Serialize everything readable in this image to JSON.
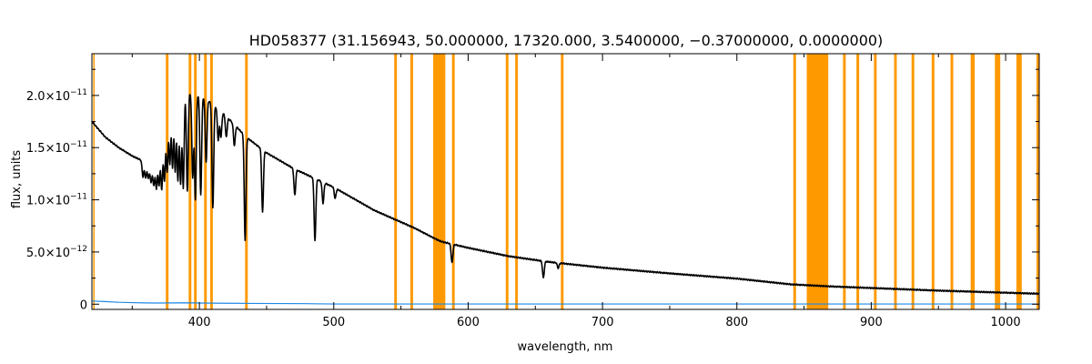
{
  "chart_data": {
    "type": "line",
    "title": "HD058377   (31.156943, 50.000000, 17320.000, 3.5400000, −0.37000000, 0.0000000)",
    "xlabel": "wavelength, nm",
    "ylabel": "flux, units",
    "xlim": [
      320,
      1025
    ],
    "ylim": [
      -5e-13,
      2.4e-11
    ],
    "x_ticks": [
      {
        "value": 400,
        "label": "400"
      },
      {
        "value": 500,
        "label": "500"
      },
      {
        "value": 600,
        "label": "600"
      },
      {
        "value": 700,
        "label": "700"
      },
      {
        "value": 800,
        "label": "800"
      },
      {
        "value": 900,
        "label": "900"
      },
      {
        "value": 1000,
        "label": "1000"
      }
    ],
    "y_ticks": [
      {
        "value": 0,
        "mantissa": "0",
        "exp": ""
      },
      {
        "value": 5e-12,
        "mantissa": "5.0×10",
        "exp": "−12"
      },
      {
        "value": 1e-11,
        "mantissa": "1.0×10",
        "exp": "−11"
      },
      {
        "value": 1.5e-11,
        "mantissa": "1.5×10",
        "exp": "−11"
      },
      {
        "value": 2e-11,
        "mantissa": "2.0×10",
        "exp": "−11"
      }
    ],
    "masked_bands": [
      [
        321,
        322
      ],
      [
        375,
        377
      ],
      [
        392,
        394
      ],
      [
        396,
        398
      ],
      [
        403.5,
        405.5
      ],
      [
        408,
        410
      ],
      [
        434,
        436
      ],
      [
        545,
        547
      ],
      [
        557,
        559
      ],
      [
        574,
        583
      ],
      [
        588,
        590
      ],
      [
        628,
        630
      ],
      [
        635,
        637
      ],
      [
        669,
        671
      ],
      [
        842,
        844
      ],
      [
        852,
        868
      ],
      [
        879,
        881
      ],
      [
        889,
        891
      ],
      [
        902,
        904
      ],
      [
        917,
        919
      ],
      [
        930,
        932
      ],
      [
        945,
        947
      ],
      [
        959,
        961
      ],
      [
        974,
        977
      ],
      [
        992,
        996
      ],
      [
        1008,
        1012
      ],
      [
        1023,
        1025
      ]
    ],
    "series": [
      {
        "color": "#000000",
        "continuum": [
          [
            320,
            1.75e-11
          ],
          [
            330,
            1.6e-11
          ],
          [
            340,
            1.5e-11
          ],
          [
            350,
            1.42e-11
          ],
          [
            360,
            1.36e-11
          ],
          [
            368,
            1.33e-11
          ],
          [
            372,
            1.55e-11
          ],
          [
            378,
            1.95e-11
          ],
          [
            390,
            2.03e-11
          ],
          [
            400,
            2e-11
          ],
          [
            410,
            1.92e-11
          ],
          [
            420,
            1.8e-11
          ],
          [
            435,
            1.6e-11
          ],
          [
            450,
            1.45e-11
          ],
          [
            470,
            1.3e-11
          ],
          [
            500,
            1.12e-11
          ],
          [
            530,
            9e-12
          ],
          [
            560,
            7.3e-12
          ],
          [
            575,
            6.3e-12
          ],
          [
            580,
            6e-12
          ],
          [
            600,
            5.4e-12
          ],
          [
            630,
            4.6e-12
          ],
          [
            660,
            4.05e-12
          ],
          [
            700,
            3.5e-12
          ],
          [
            750,
            2.95e-12
          ],
          [
            800,
            2.45e-12
          ],
          [
            840,
            1.9e-12
          ],
          [
            870,
            1.7e-12
          ],
          [
            900,
            1.55e-12
          ],
          [
            950,
            1.3e-12
          ],
          [
            1000,
            1.1e-12
          ],
          [
            1025,
            1e-12
          ]
        ],
        "absorption_lines": [
          [
            358,
            1.5e-12
          ],
          [
            360,
            1.5e-12
          ],
          [
            362,
            1.5e-12
          ],
          [
            364,
            1.8e-12
          ],
          [
            366,
            2e-12
          ],
          [
            368,
            2.2e-12
          ],
          [
            370,
            3e-12
          ],
          [
            372,
            4.5e-12
          ],
          [
            374,
            5e-12
          ],
          [
            376,
            5.5e-12
          ],
          [
            378,
            6e-12
          ],
          [
            380,
            6.5e-12
          ],
          [
            382,
            7e-12
          ],
          [
            384,
            8e-12
          ],
          [
            386,
            8.5e-12
          ],
          [
            388,
            9e-12
          ],
          [
            391,
            9.5e-12
          ],
          [
            395,
            8e-12
          ],
          [
            397,
            1e-11
          ],
          [
            401,
            9.5e-12
          ],
          [
            405,
            6e-12
          ],
          [
            410,
            1e-11
          ],
          [
            414,
            3e-12
          ],
          [
            416,
            2.5e-12
          ],
          [
            420,
            2e-12
          ],
          [
            426,
            2e-12
          ],
          [
            434,
            1e-11
          ],
          [
            447,
            6e-12
          ],
          [
            471,
            2.5e-12
          ],
          [
            486,
            6e-12
          ],
          [
            492,
            2e-12
          ],
          [
            501,
            1e-12
          ],
          [
            588,
            1.8e-12
          ],
          [
            656,
            1.6e-12
          ],
          [
            667,
            5e-13
          ]
        ]
      },
      {
        "color": "#1e88e5",
        "points": [
          [
            320,
            3e-13
          ],
          [
            330,
            2.5e-13
          ],
          [
            340,
            1.8e-13
          ],
          [
            350,
            1.5e-13
          ],
          [
            360,
            1.2e-13
          ],
          [
            370,
            1.1e-13
          ],
          [
            380,
            1.2e-13
          ],
          [
            390,
            1.3e-13
          ],
          [
            400,
            1.1e-13
          ],
          [
            420,
            9e-14
          ],
          [
            440,
            7e-14
          ],
          [
            460,
            6e-14
          ],
          [
            480,
            5e-14
          ],
          [
            485,
            4e-14
          ],
          [
            500,
            2e-14
          ],
          [
            600,
            2e-14
          ],
          [
            800,
            2e-14
          ],
          [
            1025,
            2e-14
          ]
        ]
      }
    ],
    "band_color": "#ff9900"
  }
}
